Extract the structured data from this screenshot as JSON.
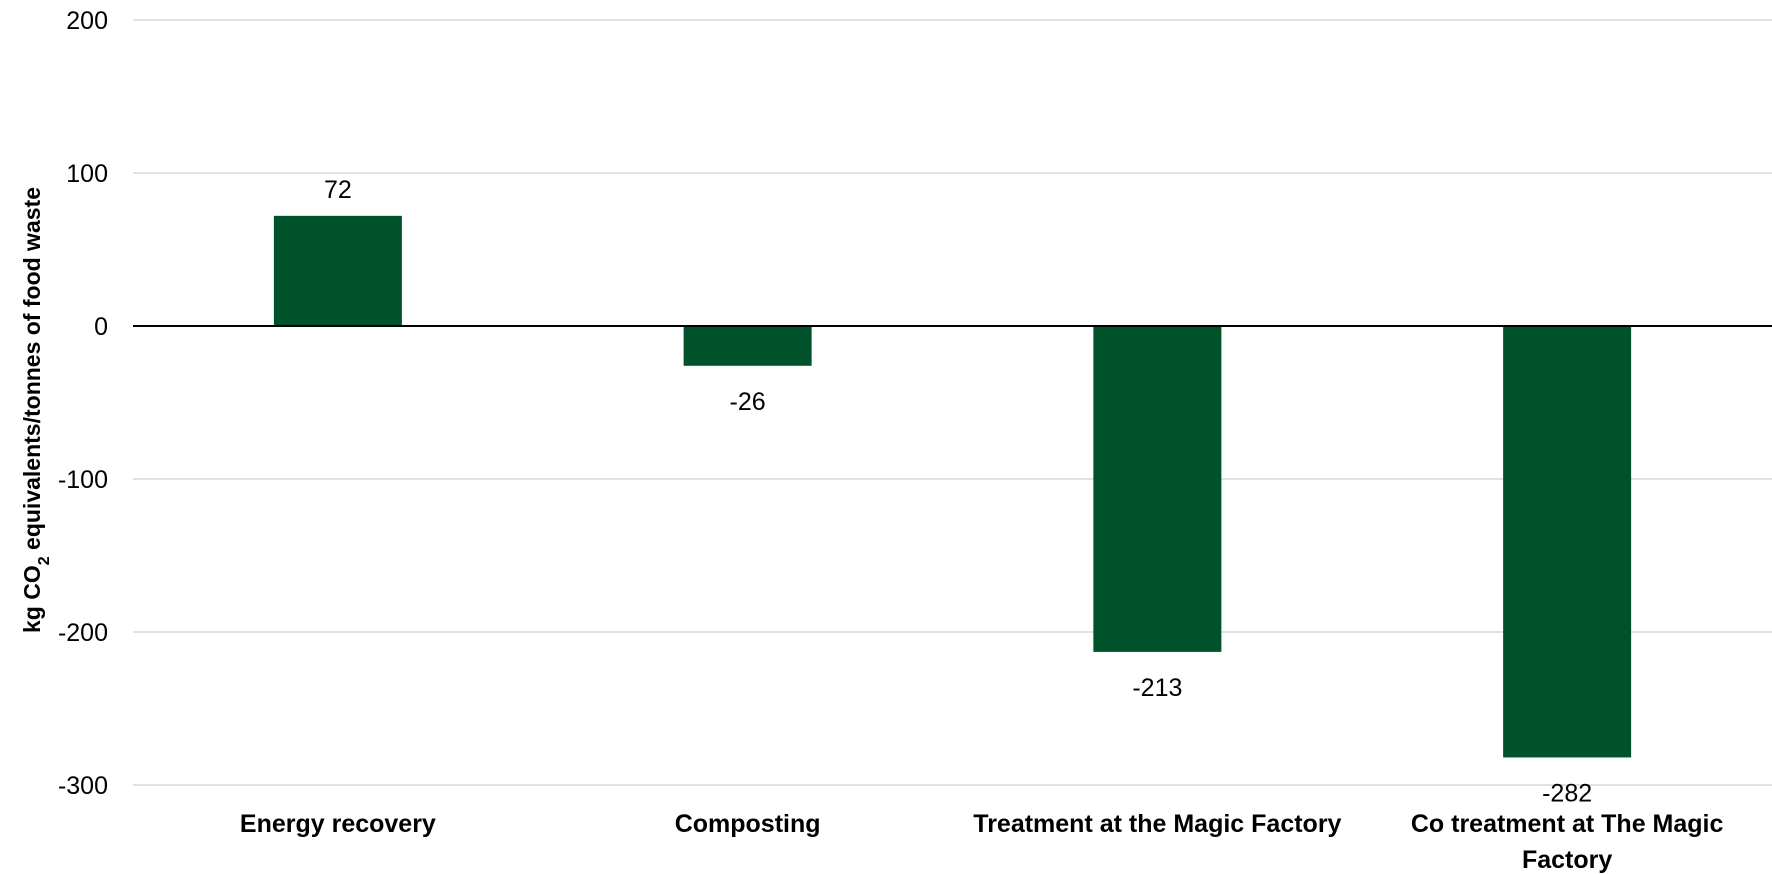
{
  "chart_data": {
    "type": "bar",
    "categories": [
      [
        "Energy recovery"
      ],
      [
        "Composting"
      ],
      [
        "Treatment at the Magic Factory"
      ],
      [
        "Co treatment at The Magic",
        "Factory"
      ]
    ],
    "values": [
      72,
      -26,
      -213,
      -282
    ],
    "data_labels": [
      "72",
      "-26",
      "-213",
      "-282"
    ],
    "ylabel": {
      "before_sub": "kg CO",
      "sub": "2",
      "after_sub": " equivalents/tonnes of food waste"
    },
    "ylim": [
      -300,
      200
    ],
    "yticks": [
      {
        "value": 200,
        "label": "200"
      },
      {
        "value": 100,
        "label": "100"
      },
      {
        "value": 0,
        "label": "0"
      },
      {
        "value": -100,
        "label": "-100"
      },
      {
        "value": -200,
        "label": "-200"
      },
      {
        "value": -300,
        "label": "-300"
      }
    ],
    "grid": true,
    "legend": "none",
    "bar_color": "#00522A",
    "grid_color": "#D9D9D9",
    "zero_line_color": "#000000"
  }
}
